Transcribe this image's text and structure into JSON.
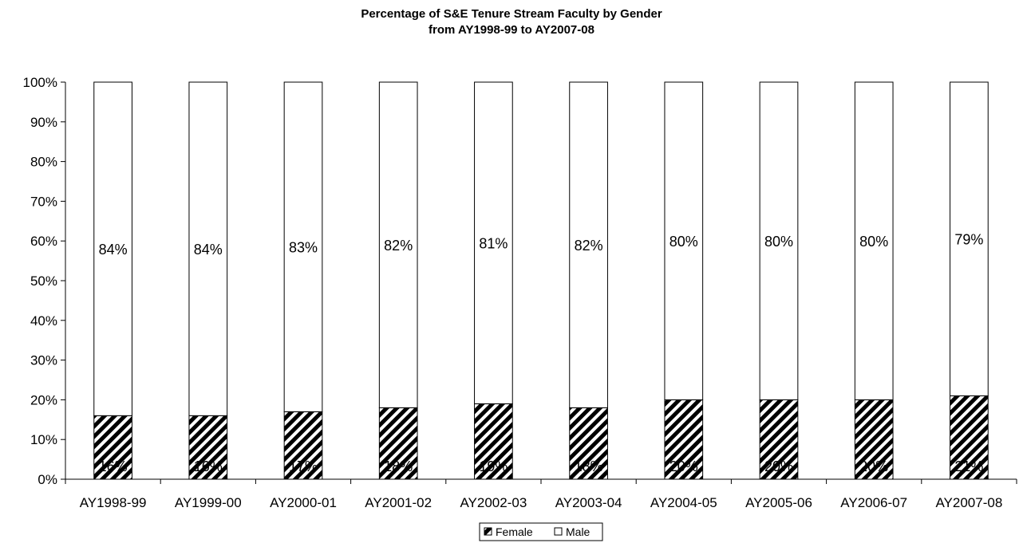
{
  "chart_data": {
    "type": "bar",
    "stacked": true,
    "percent_stacked": true,
    "title": "Percentage of S&E Tenure Stream Faculty by Gender",
    "subtitle": "from AY1998-99 to AY2007-08",
    "xlabel": "",
    "ylabel": "",
    "ylim": [
      0,
      100
    ],
    "y_tick_labels": [
      "0%",
      "10%",
      "20%",
      "30%",
      "40%",
      "50%",
      "60%",
      "70%",
      "80%",
      "90%",
      "100%"
    ],
    "grid": false,
    "legend_position": "bottom",
    "categories": [
      "AY1998-99",
      "AY1999-00",
      "AY2000-01",
      "AY2001-02",
      "AY2002-03",
      "AY2003-04",
      "AY2004-05",
      "AY2005-06",
      "AY2006-07",
      "AY2007-08"
    ],
    "series": [
      {
        "name": "Female",
        "fill": "hatched-black",
        "color": "#000000",
        "values": [
          16,
          16,
          17,
          18,
          19,
          18,
          20,
          20,
          20,
          21
        ],
        "labels": [
          "16%",
          "16%",
          "17%",
          "18%",
          "19%",
          "18%",
          "20%",
          "20%",
          "20%",
          "21%"
        ]
      },
      {
        "name": "Male",
        "fill": "white",
        "color": "#ffffff",
        "values": [
          84,
          84,
          83,
          82,
          81,
          82,
          80,
          80,
          80,
          79
        ],
        "labels": [
          "84%",
          "84%",
          "83%",
          "82%",
          "81%",
          "82%",
          "80%",
          "80%",
          "80%",
          "79%"
        ]
      }
    ]
  }
}
